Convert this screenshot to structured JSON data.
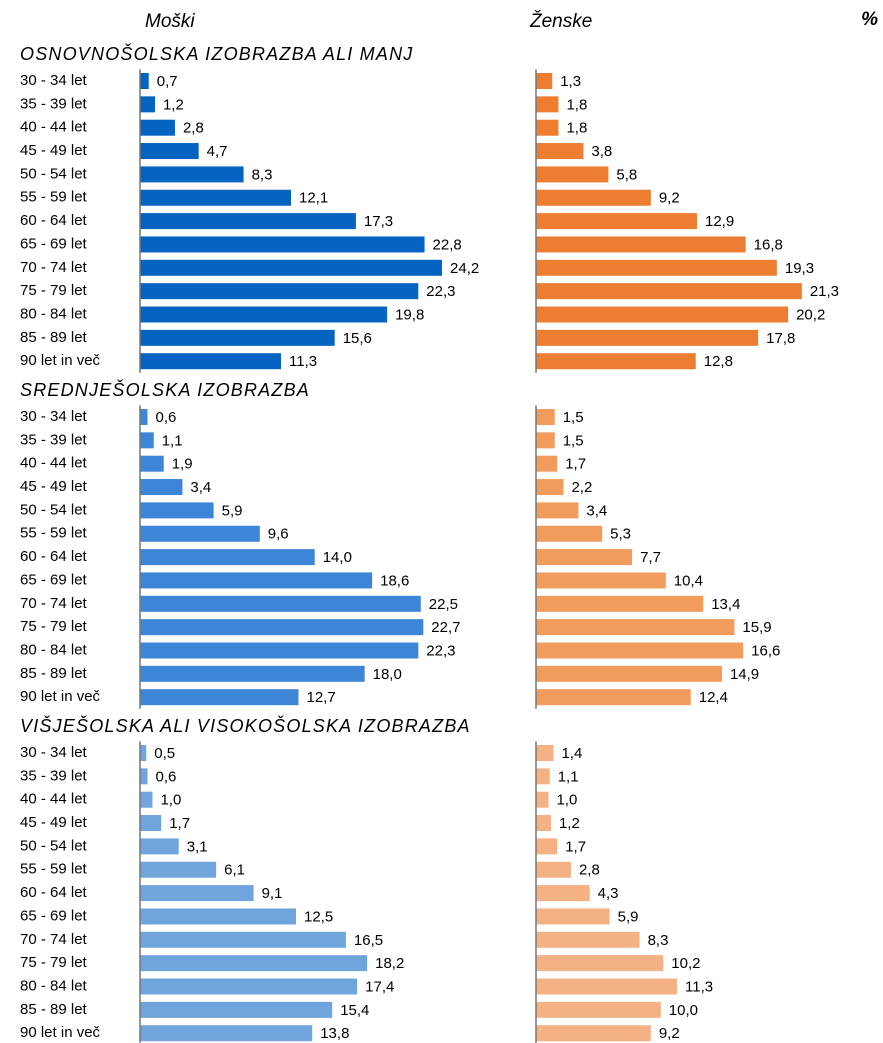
{
  "column_headers": [
    "Moški",
    "Ženske"
  ],
  "unit": "%",
  "chart_data": [
    {
      "type": "bar",
      "title": "OSNOVNOŠOLSKA IZOBRAZBA ALI MANJ",
      "categories": [
        "30 - 34 let",
        "35 - 39 let",
        "40 - 44 let",
        "45 - 49 let",
        "50 - 54 let",
        "55 - 59 let",
        "60 - 64 let",
        "65 - 69 let",
        "70 - 74 let",
        "75 - 79 let",
        "80 - 84 let",
        "85 - 89 let",
        "90 let in več"
      ],
      "xlim": [
        0,
        25
      ],
      "series": [
        {
          "color": "#0563c1",
          "values": [
            0.7,
            1.2,
            2.8,
            4.7,
            8.3,
            12.1,
            17.3,
            22.8,
            24.2,
            22.3,
            19.8,
            15.6,
            11.3
          ],
          "value_labels": [
            "0,7",
            "1,2",
            "2,8",
            "4,7",
            "8,3",
            "12,1",
            "17,3",
            "22,8",
            "24,2",
            "22,3",
            "19,8",
            "15,6",
            "11,3"
          ]
        },
        {
          "color": "#ed7d31",
          "values": [
            1.3,
            1.8,
            1.8,
            3.8,
            5.8,
            9.2,
            12.9,
            16.8,
            19.3,
            21.3,
            20.2,
            17.8,
            12.8
          ],
          "value_labels": [
            "1,3",
            "1,8",
            "1,8",
            "3,8",
            "5,8",
            "9,2",
            "12,9",
            "16,8",
            "19,3",
            "21,3",
            "20,2",
            "17,8",
            "12,8"
          ]
        }
      ]
    },
    {
      "type": "bar",
      "title": "SREDNJEŠOLSKA IZOBRAZBA",
      "categories": [
        "30 - 34 let",
        "35 - 39 let",
        "40 - 44 let",
        "45 - 49 let",
        "50 - 54 let",
        "55 - 59 let",
        "60 - 64 let",
        "65 - 69 let",
        "70 - 74 let",
        "75 - 79 let",
        "80 - 84 let",
        "85 - 89 let",
        "90 let in več"
      ],
      "xlim": [
        0,
        25
      ],
      "series": [
        {
          "color": "#3d85d6",
          "values": [
            0.6,
            1.1,
            1.9,
            3.4,
            5.9,
            9.6,
            14.0,
            18.6,
            22.5,
            22.7,
            22.3,
            18.0,
            12.7
          ],
          "value_labels": [
            "0,6",
            "1,1",
            "1,9",
            "3,4",
            "5,9",
            "9,6",
            "14,0",
            "18,6",
            "22,5",
            "22,7",
            "22,3",
            "18,0",
            "12,7"
          ]
        },
        {
          "color": "#f19b5c",
          "values": [
            1.5,
            1.5,
            1.7,
            2.2,
            3.4,
            5.3,
            7.7,
            10.4,
            13.4,
            15.9,
            16.6,
            14.9,
            12.4
          ],
          "value_labels": [
            "1,5",
            "1,5",
            "1,7",
            "2,2",
            "3,4",
            "5,3",
            "7,7",
            "10,4",
            "13,4",
            "15,9",
            "16,6",
            "14,9",
            "12,4"
          ]
        }
      ]
    },
    {
      "type": "bar",
      "title": "VIŠJEŠOLSKA ALI VISOKOŠOLSKA IZOBRAZBA",
      "categories": [
        "30 - 34 let",
        "35 - 39 let",
        "40 - 44 let",
        "45 - 49 let",
        "50 - 54 let",
        "55 - 59 let",
        "60 - 64 let",
        "65 - 69 let",
        "70 - 74 let",
        "75 - 79 let",
        "80 - 84 let",
        "85 - 89 let",
        "90 let in več"
      ],
      "xlim": [
        0,
        25
      ],
      "series": [
        {
          "color": "#6fa4dd",
          "values": [
            0.5,
            0.6,
            1.0,
            1.7,
            3.1,
            6.1,
            9.1,
            12.5,
            16.5,
            18.2,
            17.4,
            15.4,
            13.8
          ],
          "value_labels": [
            "0,5",
            "0,6",
            "1,0",
            "1,7",
            "3,1",
            "6,1",
            "9,1",
            "12,5",
            "16,5",
            "18,2",
            "17,4",
            "15,4",
            "13,8"
          ]
        },
        {
          "color": "#f4b183",
          "values": [
            1.4,
            1.1,
            1.0,
            1.2,
            1.7,
            2.8,
            4.3,
            5.9,
            8.3,
            10.2,
            11.3,
            10.0,
            9.2
          ],
          "value_labels": [
            "1,4",
            "1,1",
            "1,0",
            "1,2",
            "1,7",
            "2,8",
            "4,3",
            "5,9",
            "8,3",
            "10,2",
            "11,3",
            "10,0",
            "9,2"
          ]
        }
      ]
    }
  ]
}
